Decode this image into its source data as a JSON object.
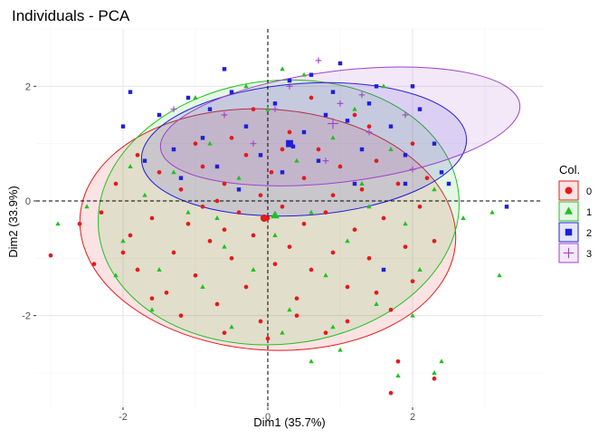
{
  "chart_data": {
    "type": "scatter",
    "title": "Individuals - PCA",
    "xlabel": "Dim1 (35.7%)",
    "ylabel": "Dim2 (33.9%)",
    "xlim": [
      -3.2,
      3.8
    ],
    "ylim": [
      -3.6,
      3.0
    ],
    "x_ticks": [
      -2,
      0,
      2
    ],
    "y_ticks": [
      -2,
      0,
      2
    ],
    "grid": true,
    "legend_position": "right",
    "legend_title": "Col.",
    "colors": {
      "0": "#e41a1c",
      "1": "#21c021",
      "2": "#1f1fd8",
      "3": "#a040c8"
    },
    "series": [
      {
        "name": "0",
        "marker": "circle",
        "mean": [
          -0.05,
          -0.3
        ],
        "ellipse": {
          "cx": 0.0,
          "cy": -0.5,
          "rx": 2.6,
          "ry": 2.1,
          "angle": 4
        },
        "points": [
          [
            -3.0,
            -0.95
          ],
          [
            -2.3,
            -0.2
          ],
          [
            -2.1,
            0.3
          ],
          [
            -1.9,
            -0.6
          ],
          [
            -1.8,
            -1.2
          ],
          [
            -1.6,
            -0.3
          ],
          [
            -1.5,
            0.5
          ],
          [
            -1.4,
            -1.6
          ],
          [
            -1.3,
            -0.9
          ],
          [
            -1.2,
            0.2
          ],
          [
            -1.1,
            -0.4
          ],
          [
            -1.0,
            -1.3
          ],
          [
            -0.9,
            0.6
          ],
          [
            -0.9,
            -0.1
          ],
          [
            -0.8,
            -0.7
          ],
          [
            -0.7,
            -1.8
          ],
          [
            -0.6,
            0.3
          ],
          [
            -0.6,
            -0.5
          ],
          [
            -0.5,
            1.1
          ],
          [
            -0.5,
            -1.0
          ],
          [
            -0.4,
            -0.2
          ],
          [
            -0.3,
            -1.5
          ],
          [
            -0.3,
            0.8
          ],
          [
            -0.2,
            -0.6
          ],
          [
            -0.1,
            0.1
          ],
          [
            -0.1,
            -2.1
          ],
          [
            0.0,
            -0.3
          ],
          [
            0.05,
            0.5
          ],
          [
            0.1,
            -1.1
          ],
          [
            0.2,
            -0.1
          ],
          [
            0.3,
            1.2
          ],
          [
            0.3,
            -0.8
          ],
          [
            0.4,
            -1.7
          ],
          [
            0.5,
            0.4
          ],
          [
            0.5,
            -0.4
          ],
          [
            0.6,
            -1.2
          ],
          [
            0.7,
            0.9
          ],
          [
            0.8,
            -0.2
          ],
          [
            0.9,
            -0.9
          ],
          [
            1.0,
            0.6
          ],
          [
            1.1,
            -1.5
          ],
          [
            1.2,
            -0.5
          ],
          [
            1.3,
            0.2
          ],
          [
            1.4,
            -1.0
          ],
          [
            1.5,
            0.7
          ],
          [
            1.6,
            -0.3
          ],
          [
            1.7,
            -1.9
          ],
          [
            1.8,
            0.3
          ],
          [
            1.9,
            -0.8
          ],
          [
            2.0,
            -1.4
          ],
          [
            2.1,
            -0.1
          ],
          [
            2.2,
            0.4
          ],
          [
            1.8,
            -2.8
          ],
          [
            1.7,
            -3.35
          ],
          [
            2.3,
            -3.1
          ],
          [
            -2.4,
            -1.1
          ],
          [
            -1.2,
            -2.0
          ],
          [
            0.8,
            -2.3
          ],
          [
            1.2,
            1.5
          ],
          [
            -0.2,
            1.6
          ],
          [
            0.6,
            1.8
          ],
          [
            -1.0,
            1.0
          ],
          [
            0.0,
            -2.4
          ],
          [
            2.0,
            1.0
          ],
          [
            -2.0,
            -0.9
          ],
          [
            1.4,
            1.3
          ],
          [
            -0.7,
            0.0
          ],
          [
            0.2,
            0.9
          ],
          [
            0.9,
            0.1
          ],
          [
            -1.6,
            -1.7
          ],
          [
            -0.6,
            -2.3
          ],
          [
            0.4,
            -2.0
          ],
          [
            1.1,
            -2.1
          ],
          [
            1.5,
            -1.6
          ],
          [
            2.3,
            -0.7
          ],
          [
            -1.8,
            0.8
          ],
          [
            -2.6,
            -0.4
          ],
          [
            0.0,
            -0.3
          ]
        ]
      },
      {
        "name": "1",
        "marker": "triangle",
        "mean": [
          0.1,
          -0.25
        ],
        "ellipse": {
          "cx": 0.15,
          "cy": -0.2,
          "rx": 2.5,
          "ry": 2.3,
          "angle": -6
        },
        "points": [
          [
            -2.9,
            -0.4
          ],
          [
            -2.5,
            -0.1
          ],
          [
            -2.0,
            -0.7
          ],
          [
            -1.7,
            0.1
          ],
          [
            -1.5,
            -1.2
          ],
          [
            -1.3,
            0.5
          ],
          [
            -1.1,
            -0.2
          ],
          [
            -0.9,
            -1.5
          ],
          [
            -0.8,
            1.0
          ],
          [
            -0.6,
            -0.8
          ],
          [
            -0.4,
            0.4
          ],
          [
            -0.2,
            -1.2
          ],
          [
            0.0,
            1.6
          ],
          [
            0.1,
            -0.6
          ],
          [
            0.3,
            -1.9
          ],
          [
            0.4,
            0.7
          ],
          [
            0.6,
            -0.2
          ],
          [
            0.8,
            -1.3
          ],
          [
            0.9,
            1.1
          ],
          [
            1.1,
            -0.7
          ],
          [
            1.3,
            0.3
          ],
          [
            1.5,
            -1.8
          ],
          [
            1.7,
            0.9
          ],
          [
            1.9,
            -0.4
          ],
          [
            2.1,
            -1.2
          ],
          [
            2.3,
            0.2
          ],
          [
            2.7,
            -0.3
          ],
          [
            3.1,
            -0.2
          ],
          [
            3.2,
            -1.3
          ],
          [
            2.4,
            -2.8
          ],
          [
            2.3,
            -3.0
          ],
          [
            1.8,
            -3.05
          ],
          [
            0.6,
            -2.8
          ],
          [
            1.0,
            -2.6
          ],
          [
            -0.5,
            -2.2
          ],
          [
            -1.6,
            -1.9
          ],
          [
            -2.1,
            -1.3
          ],
          [
            1.2,
            1.6
          ],
          [
            -0.3,
            2.0
          ],
          [
            0.5,
            2.2
          ],
          [
            -1.0,
            1.8
          ],
          [
            1.6,
            2.0
          ],
          [
            0.2,
            -2.3
          ],
          [
            -1.9,
            0.6
          ],
          [
            2.0,
            -2.0
          ],
          [
            0.9,
            -2.2
          ],
          [
            -0.7,
            -0.3
          ],
          [
            1.4,
            -0.1
          ],
          [
            0.2,
            2.3
          ]
        ]
      },
      {
        "name": "2",
        "marker": "square",
        "mean": [
          0.3,
          1.0
        ],
        "ellipse": {
          "cx": 0.5,
          "cy": 0.9,
          "rx": 2.25,
          "ry": 1.15,
          "angle": -4
        },
        "points": [
          [
            -2.0,
            1.3
          ],
          [
            -1.7,
            0.7
          ],
          [
            -1.5,
            1.5
          ],
          [
            -1.3,
            0.9
          ],
          [
            -1.1,
            1.8
          ],
          [
            -0.9,
            1.1
          ],
          [
            -0.7,
            0.6
          ],
          [
            -0.5,
            1.9
          ],
          [
            -0.3,
            1.3
          ],
          [
            -0.1,
            0.8
          ],
          [
            0.1,
            1.7
          ],
          [
            0.3,
            2.1
          ],
          [
            0.5,
            1.2
          ],
          [
            0.7,
            0.7
          ],
          [
            0.9,
            1.9
          ],
          [
            1.1,
            1.4
          ],
          [
            1.3,
            0.9
          ],
          [
            1.5,
            2.0
          ],
          [
            1.7,
            1.3
          ],
          [
            1.9,
            0.8
          ],
          [
            2.1,
            1.6
          ],
          [
            2.3,
            1.0
          ],
          [
            2.4,
            0.5
          ],
          [
            0.6,
            2.2
          ],
          [
            -0.6,
            2.3
          ],
          [
            1.0,
            2.4
          ],
          [
            1.9,
            0.3
          ],
          [
            2.5,
            0.3
          ],
          [
            3.3,
            -0.1
          ],
          [
            0.35,
            0.95
          ],
          [
            -1.9,
            1.9
          ],
          [
            -0.4,
            0.2
          ],
          [
            1.2,
            0.3
          ],
          [
            -1.2,
            0.4
          ],
          [
            0.8,
            1.5
          ],
          [
            2.0,
            2.0
          ],
          [
            1.6,
            -1.2
          ],
          [
            0.2,
            0.5
          ],
          [
            -0.8,
            1.6
          ],
          [
            1.4,
            1.7
          ]
        ]
      },
      {
        "name": "3",
        "marker": "plus",
        "mean": [
          0.9,
          1.35
        ],
        "ellipse": {
          "cx": 1.0,
          "cy": 1.3,
          "rx": 2.5,
          "ry": 0.97,
          "angle": -7
        },
        "points": [
          [
            -0.6,
            1.5
          ],
          [
            0.3,
            2.0
          ],
          [
            0.7,
            2.45
          ],
          [
            1.0,
            1.7
          ],
          [
            1.4,
            1.2
          ],
          [
            1.9,
            1.5
          ],
          [
            -0.2,
            1.0
          ],
          [
            0.8,
            0.7
          ],
          [
            2.0,
            0.55
          ],
          [
            -1.3,
            1.6
          ],
          [
            0.1,
            1.6
          ],
          [
            1.3,
            1.85
          ]
        ]
      }
    ]
  }
}
